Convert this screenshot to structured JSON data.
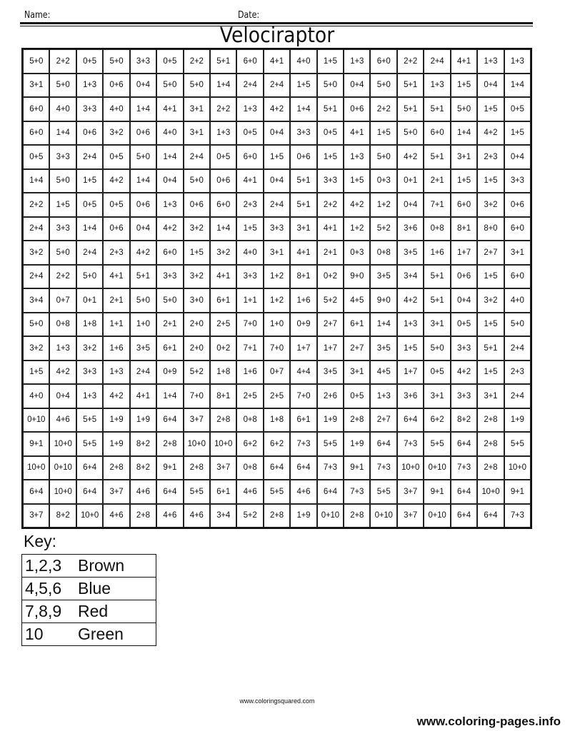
{
  "header": {
    "name_label": "Name:",
    "date_label": "Date:"
  },
  "title": "Velociraptor",
  "grid": [
    [
      "5+0",
      "2+2",
      "0+5",
      "5+0",
      "3+3",
      "0+5",
      "2+2",
      "5+1",
      "6+0",
      "4+1",
      "4+0",
      "1+5",
      "1+3",
      "6+0",
      "2+2",
      "2+4",
      "4+1",
      "1+3",
      "1+3"
    ],
    [
      "3+1",
      "5+0",
      "1+3",
      "0+6",
      "0+4",
      "5+0",
      "5+0",
      "1+4",
      "2+4",
      "2+4",
      "1+5",
      "5+0",
      "0+4",
      "5+0",
      "5+1",
      "1+3",
      "1+5",
      "0+4",
      "1+4"
    ],
    [
      "6+0",
      "4+0",
      "3+3",
      "4+0",
      "1+4",
      "4+1",
      "3+1",
      "2+2",
      "1+3",
      "4+2",
      "1+4",
      "5+1",
      "0+6",
      "2+2",
      "5+1",
      "5+1",
      "5+0",
      "1+5",
      "0+5"
    ],
    [
      "6+0",
      "1+4",
      "0+6",
      "3+2",
      "0+6",
      "4+0",
      "3+1",
      "1+3",
      "0+5",
      "0+4",
      "3+3",
      "0+5",
      "4+1",
      "1+5",
      "5+0",
      "6+0",
      "1+4",
      "4+2",
      "1+5"
    ],
    [
      "0+5",
      "3+3",
      "2+4",
      "0+5",
      "5+0",
      "1+4",
      "2+4",
      "0+5",
      "6+0",
      "1+5",
      "0+6",
      "1+5",
      "1+3",
      "5+0",
      "4+2",
      "5+1",
      "3+1",
      "2+3",
      "0+4"
    ],
    [
      "1+4",
      "5+0",
      "1+5",
      "4+2",
      "1+4",
      "0+4",
      "5+0",
      "0+6",
      "4+1",
      "0+4",
      "5+1",
      "3+3",
      "1+5",
      "0+3",
      "0+1",
      "2+1",
      "1+5",
      "1+5",
      "3+3"
    ],
    [
      "2+2",
      "1+5",
      "0+5",
      "0+5",
      "0+6",
      "1+3",
      "0+6",
      "6+0",
      "2+3",
      "2+4",
      "5+1",
      "2+2",
      "4+2",
      "1+2",
      "0+4",
      "7+1",
      "6+0",
      "3+2",
      "0+6"
    ],
    [
      "2+4",
      "3+3",
      "1+4",
      "0+6",
      "0+4",
      "4+2",
      "3+2",
      "1+4",
      "1+5",
      "3+3",
      "3+1",
      "4+1",
      "1+2",
      "5+2",
      "3+6",
      "0+8",
      "8+1",
      "8+0",
      "6+0"
    ],
    [
      "3+2",
      "5+0",
      "2+4",
      "2+3",
      "4+2",
      "6+0",
      "1+5",
      "3+2",
      "4+0",
      "3+1",
      "4+1",
      "2+1",
      "0+3",
      "0+8",
      "3+5",
      "1+6",
      "1+7",
      "2+7",
      "3+1"
    ],
    [
      "2+4",
      "2+2",
      "5+0",
      "4+1",
      "5+1",
      "3+3",
      "3+2",
      "4+1",
      "3+3",
      "1+2",
      "8+1",
      "0+2",
      "9+0",
      "3+5",
      "3+4",
      "5+1",
      "0+6",
      "1+5",
      "6+0"
    ],
    [
      "3+4",
      "0+7",
      "0+1",
      "2+1",
      "5+0",
      "5+0",
      "3+0",
      "6+1",
      "1+1",
      "1+2",
      "1+6",
      "5+2",
      "4+5",
      "9+0",
      "4+2",
      "5+1",
      "0+4",
      "3+2",
      "4+0"
    ],
    [
      "5+0",
      "0+8",
      "1+8",
      "1+1",
      "1+0",
      "2+1",
      "2+0",
      "2+5",
      "7+0",
      "1+0",
      "0+9",
      "2+7",
      "6+1",
      "1+4",
      "1+3",
      "3+1",
      "0+5",
      "1+5",
      "5+0"
    ],
    [
      "3+2",
      "1+3",
      "3+2",
      "1+6",
      "3+5",
      "6+1",
      "2+0",
      "0+2",
      "7+1",
      "7+0",
      "1+7",
      "1+7",
      "2+7",
      "3+5",
      "1+5",
      "5+0",
      "3+3",
      "5+1",
      "2+4"
    ],
    [
      "1+5",
      "4+2",
      "3+3",
      "1+3",
      "2+4",
      "0+9",
      "5+2",
      "1+8",
      "1+6",
      "0+7",
      "4+4",
      "3+5",
      "3+1",
      "4+5",
      "1+7",
      "0+5",
      "4+2",
      "1+5",
      "2+3"
    ],
    [
      "4+0",
      "0+4",
      "1+3",
      "4+2",
      "4+1",
      "1+4",
      "7+0",
      "8+1",
      "2+5",
      "2+5",
      "7+0",
      "2+6",
      "0+5",
      "1+3",
      "3+6",
      "3+1",
      "3+3",
      "3+1",
      "2+4"
    ],
    [
      "0+10",
      "4+6",
      "5+5",
      "1+9",
      "1+9",
      "6+4",
      "3+7",
      "2+8",
      "0+8",
      "1+8",
      "6+1",
      "1+9",
      "2+8",
      "2+7",
      "6+4",
      "6+2",
      "8+2",
      "2+8",
      "1+9"
    ],
    [
      "9+1",
      "10+0",
      "5+5",
      "1+9",
      "8+2",
      "2+8",
      "10+0",
      "10+0",
      "6+2",
      "6+2",
      "7+3",
      "5+5",
      "1+9",
      "6+4",
      "7+3",
      "5+5",
      "6+4",
      "2+8",
      "5+5"
    ],
    [
      "10+0",
      "0+10",
      "6+4",
      "2+8",
      "8+2",
      "9+1",
      "2+8",
      "3+7",
      "0+8",
      "6+4",
      "6+4",
      "7+3",
      "9+1",
      "7+3",
      "10+0",
      "0+10",
      "7+3",
      "2+8",
      "10+0"
    ],
    [
      "6+4",
      "10+0",
      "6+4",
      "3+7",
      "4+6",
      "6+4",
      "5+5",
      "6+1",
      "4+6",
      "5+5",
      "4+6",
      "6+4",
      "7+3",
      "5+5",
      "3+7",
      "9+1",
      "6+4",
      "10+0",
      "9+1"
    ],
    [
      "3+7",
      "8+2",
      "10+0",
      "4+6",
      "2+8",
      "4+6",
      "4+6",
      "3+4",
      "5+2",
      "2+8",
      "1+9",
      "0+10",
      "2+8",
      "0+10",
      "3+7",
      "0+10",
      "6+4",
      "6+4",
      "7+3"
    ]
  ],
  "key": {
    "label": "Key:",
    "rows": [
      {
        "numbers": "1,2,3",
        "color": "Brown"
      },
      {
        "numbers": "4,5,6",
        "color": "Blue"
      },
      {
        "numbers": "7,8,9",
        "color": "Red"
      },
      {
        "numbers": "10",
        "color": "Green"
      }
    ]
  },
  "footer": "www.coloringsquared.com",
  "watermark": "www.coloring-pages.info"
}
